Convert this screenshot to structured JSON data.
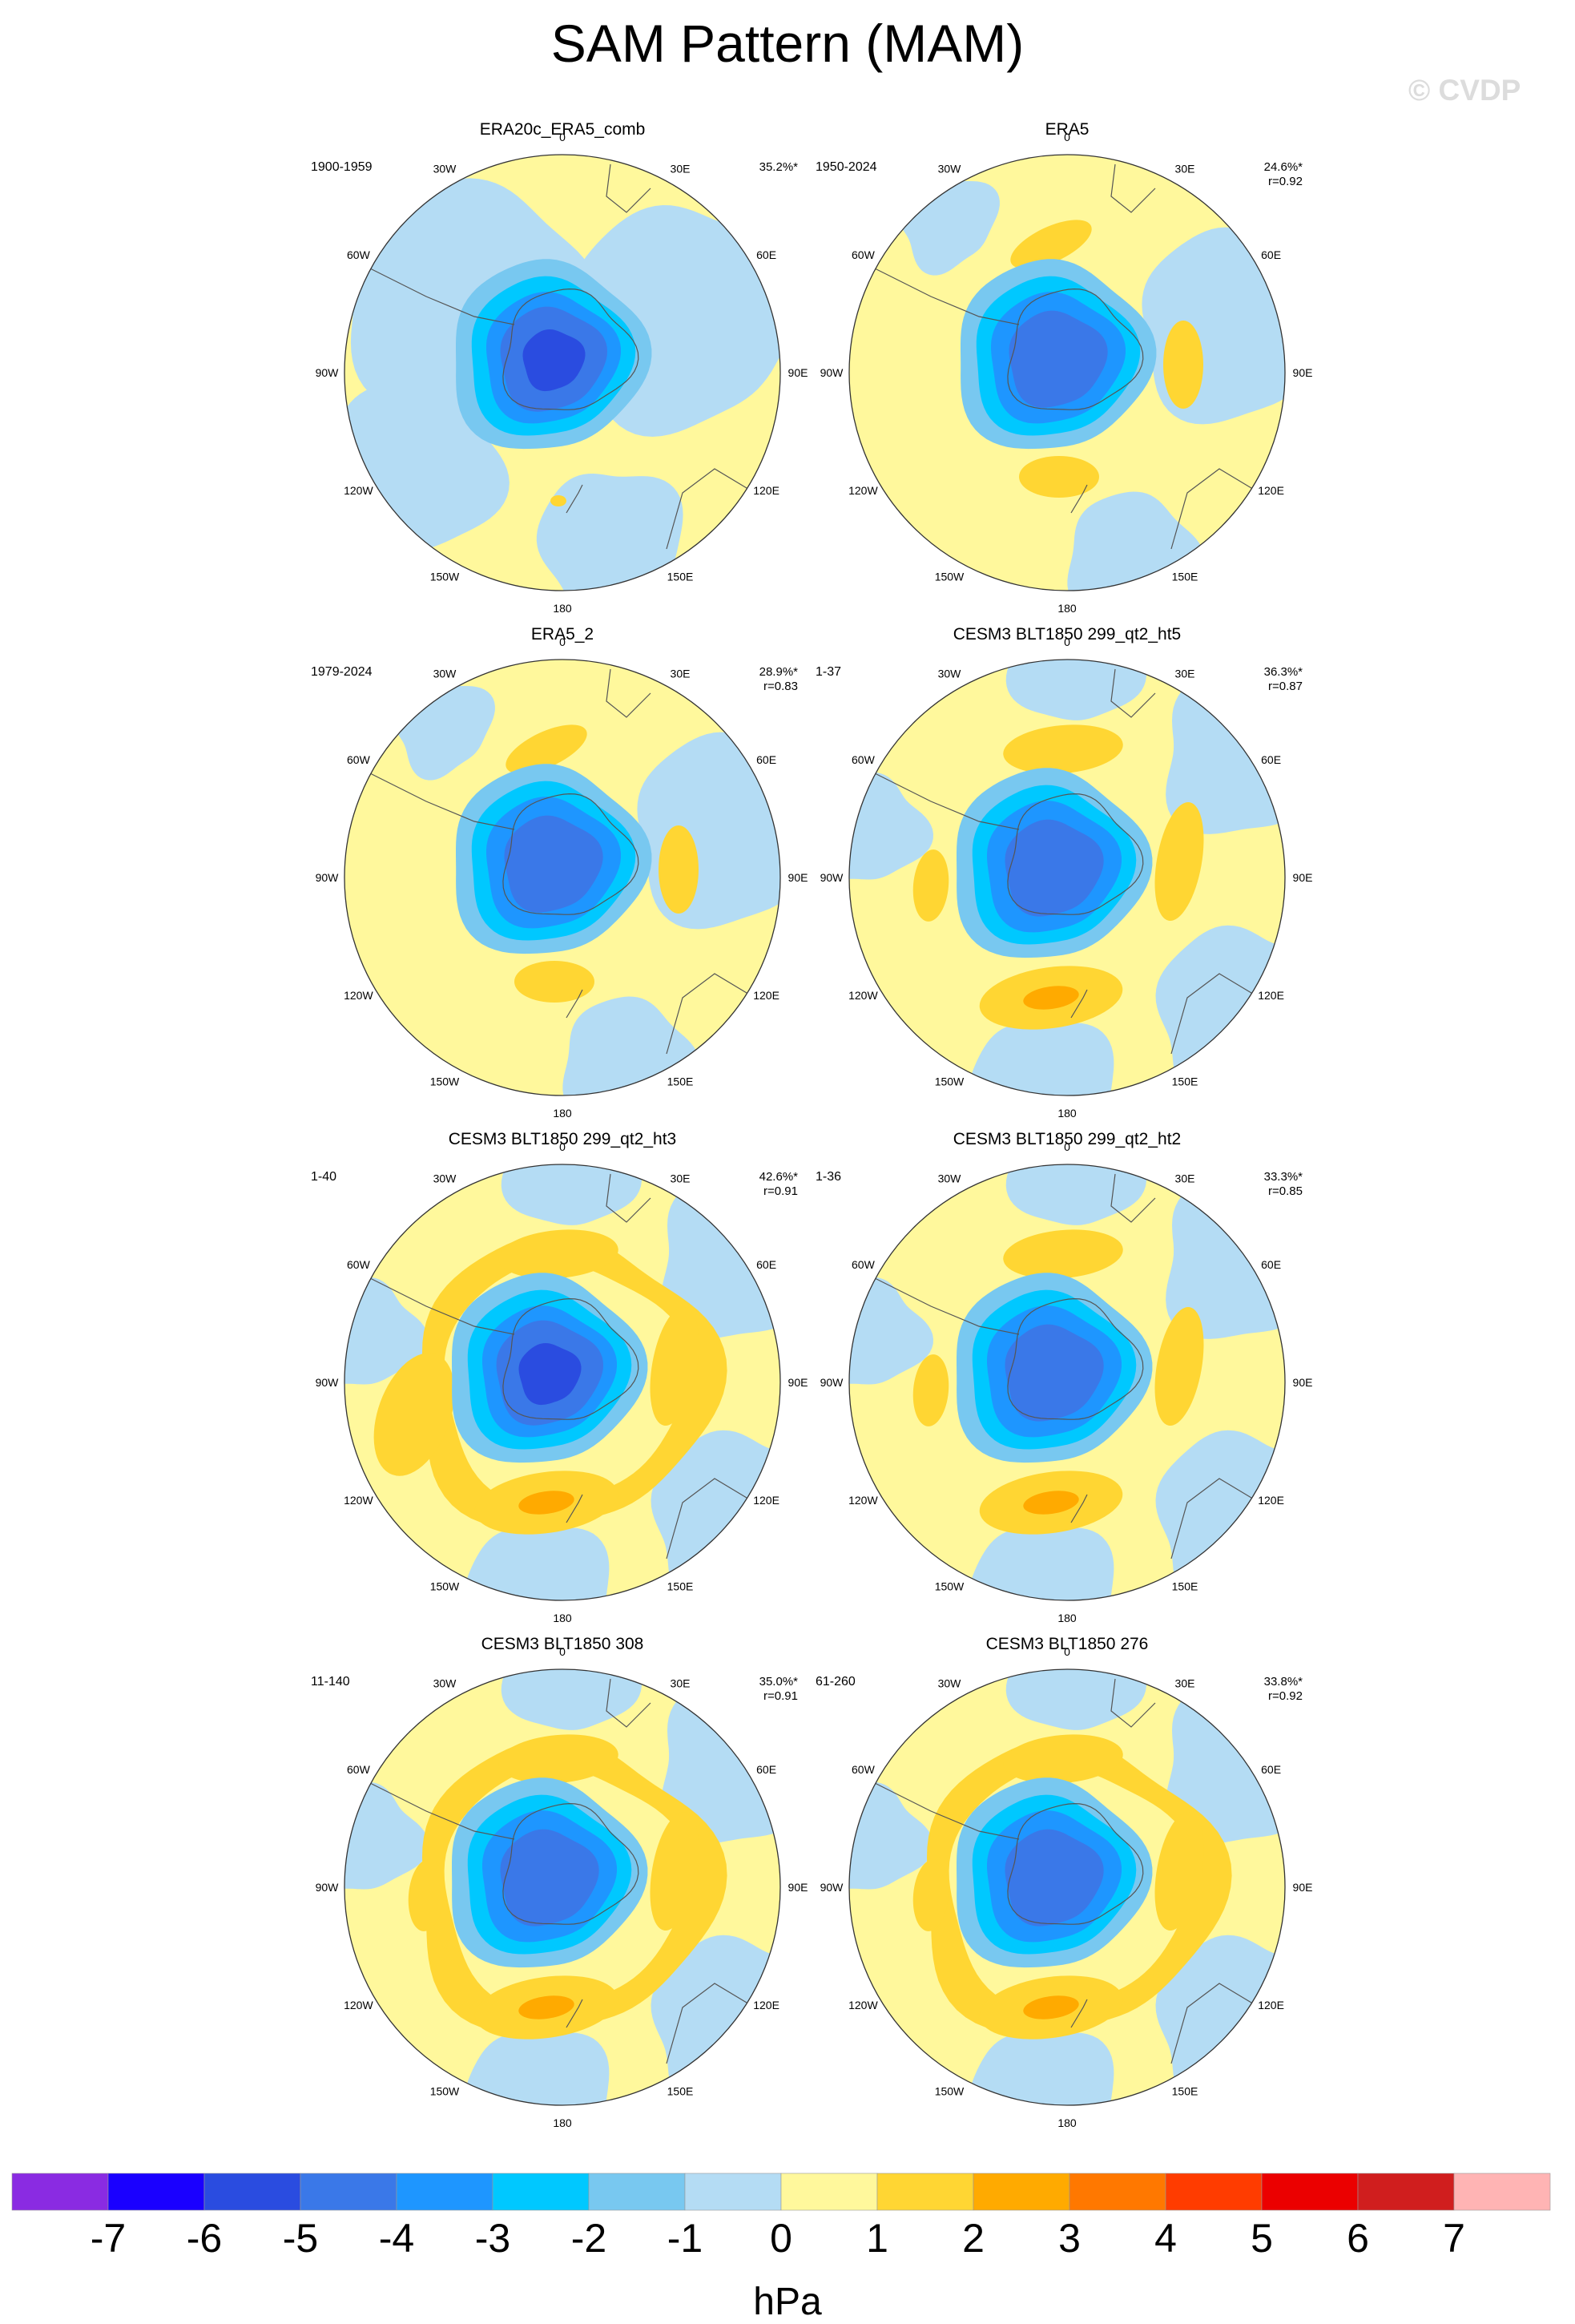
{
  "title": "SAM Pattern (MAM)",
  "watermark": "© CVDP",
  "units": "hPa",
  "lon_labels": [
    "0",
    "30E",
    "60E",
    "90E",
    "120E",
    "150E",
    "180",
    "150W",
    "120W",
    "90W",
    "60W",
    "30W"
  ],
  "colorbar": {
    "colors": [
      "#8a2be2",
      "#1a00ff",
      "#2a4ce0",
      "#3a78e8",
      "#1e96ff",
      "#00c8ff",
      "#78c8f0",
      "#b4dcf4",
      "#fff89c",
      "#ffd633",
      "#ffaa00",
      "#ff7800",
      "#ff3c00",
      "#eb0000",
      "#d01e1e",
      "#ffb4b4"
    ],
    "labels": [
      "-7",
      "-6",
      "-5",
      "-4",
      "-3",
      "-2",
      "-1",
      "0",
      "1",
      "2",
      "3",
      "4",
      "5",
      "6",
      "7"
    ]
  },
  "panels": [
    {
      "title": "ERA20c_ERA5_comb",
      "period": "1900-1959",
      "pct": "35.2%*",
      "corr": "",
      "pattern": "obs-cool"
    },
    {
      "title": "ERA5",
      "period": "1950-2024",
      "pct": "24.6%*",
      "corr": "r=0.92",
      "pattern": "obs"
    },
    {
      "title": "ERA5_2",
      "period": "1979-2024",
      "pct": "28.9%*",
      "corr": "r=0.83",
      "pattern": "obs"
    },
    {
      "title": "CESM3 BLT1850 299_qt2_ht5",
      "period": "1-37",
      "pct": "36.3%*",
      "corr": "r=0.87",
      "pattern": "model"
    },
    {
      "title": "CESM3 BLT1850 299_qt2_ht3",
      "period": "1-40",
      "pct": "42.6%*",
      "corr": "r=0.91",
      "pattern": "model-strong"
    },
    {
      "title": "CESM3 BLT1850 299_qt2_ht2",
      "period": "1-36",
      "pct": "33.3%*",
      "corr": "r=0.85",
      "pattern": "model"
    },
    {
      "title": "CESM3 BLT1850 308",
      "period": "11-140",
      "pct": "35.0%*",
      "corr": "r=0.91",
      "pattern": "model-ring"
    },
    {
      "title": "CESM3 BLT1850 276",
      "period": "61-260",
      "pct": "33.8%*",
      "corr": "r=0.92",
      "pattern": "model-ring"
    }
  ]
}
